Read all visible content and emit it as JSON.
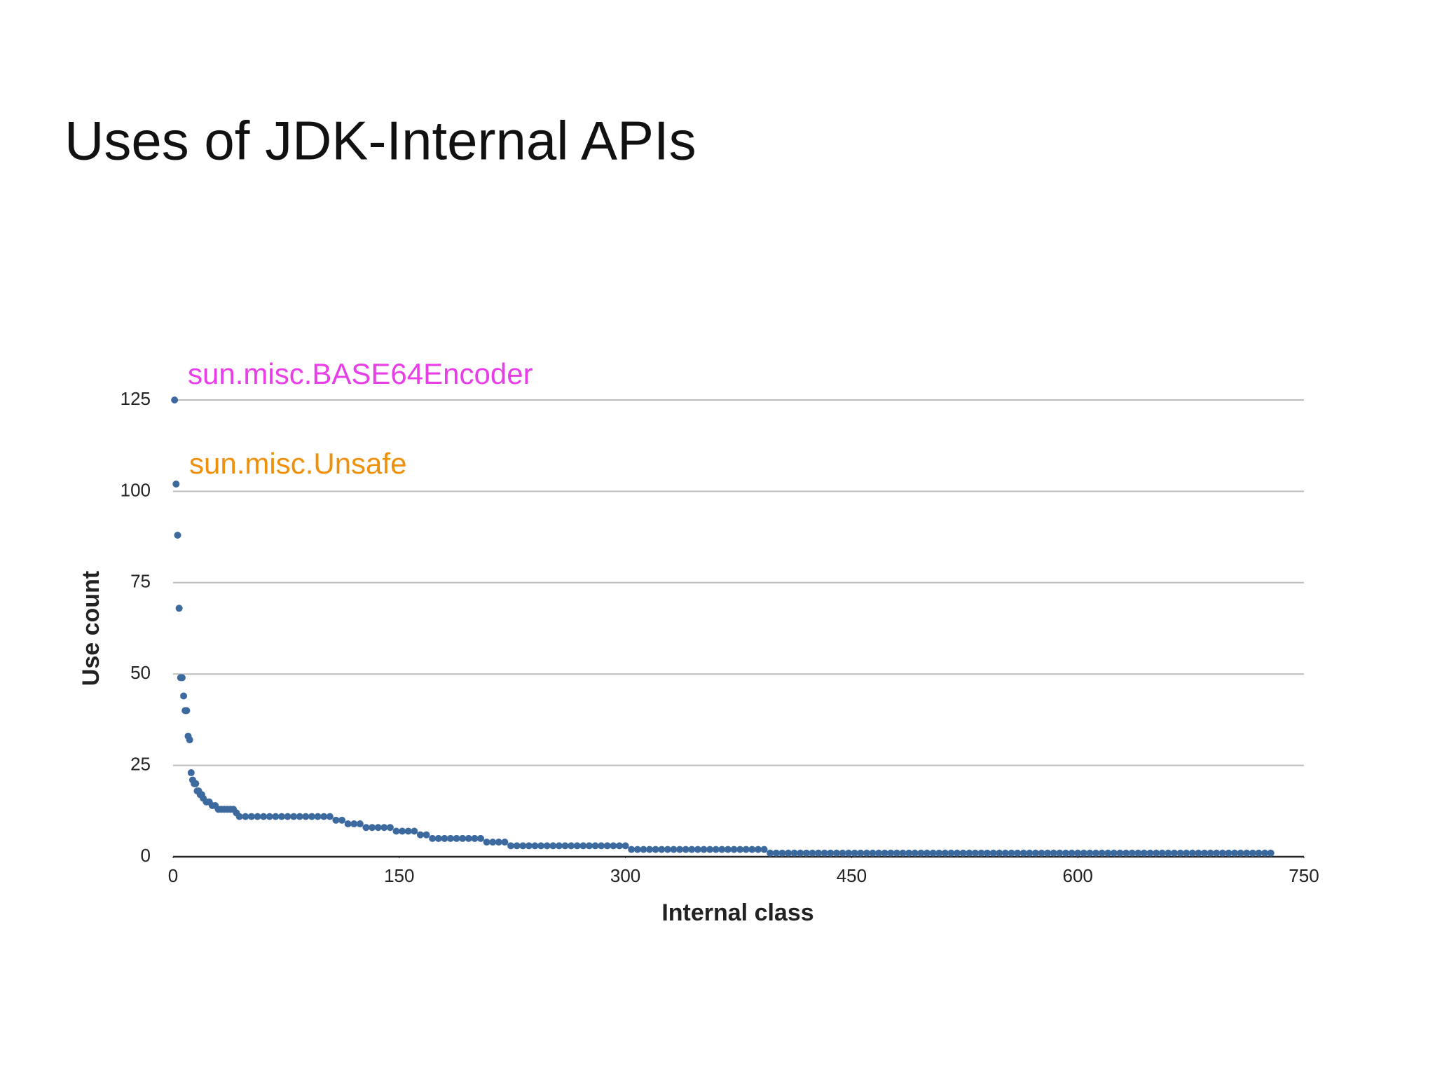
{
  "chart_data": {
    "type": "scatter",
    "title": "Uses of JDK-Internal APIs",
    "xlabel": "Internal class",
    "ylabel": "Use count",
    "annotations": [
      {
        "text": "sun.misc.BASE64Encoder",
        "color": "#e83ee8"
      },
      {
        "text": "sun.misc.Unsafe",
        "color": "#f0900a"
      }
    ],
    "color": "#3d6a9e",
    "grid": true,
    "xlim": [
      0,
      750
    ],
    "xticks": [
      0,
      150,
      300,
      450,
      600,
      750
    ],
    "ylim": [
      0,
      125
    ],
    "yticks": [
      0,
      25,
      50,
      75,
      100,
      125
    ],
    "x": [
      1,
      2,
      3,
      4,
      5,
      6,
      7,
      8,
      9,
      10,
      11,
      12,
      13,
      14,
      15,
      16,
      17,
      18,
      19,
      20,
      22,
      24,
      26,
      28,
      30,
      32,
      34,
      36,
      38,
      40,
      42,
      44,
      48,
      52,
      56,
      60,
      64,
      68,
      72,
      76,
      80,
      84,
      88,
      92,
      96,
      100,
      104,
      108,
      112,
      116,
      120,
      124,
      128,
      132,
      136,
      140,
      144,
      148,
      152,
      156,
      160,
      164,
      168,
      172,
      176,
      180,
      184,
      188,
      192,
      196,
      200,
      204,
      208,
      212,
      216,
      220,
      224,
      228,
      232,
      236,
      240,
      244,
      248,
      252,
      256,
      260,
      264,
      268,
      272,
      276,
      280,
      284,
      288,
      292,
      296,
      300,
      304,
      308,
      312,
      316,
      320,
      324,
      328,
      332,
      336,
      340,
      344,
      348,
      352,
      356,
      360,
      364,
      368,
      372,
      376,
      380,
      384,
      388,
      392,
      396,
      400,
      404,
      408,
      412,
      416,
      420,
      424,
      428,
      432,
      436,
      440,
      444,
      448,
      452,
      456,
      460,
      464,
      468,
      472,
      476,
      480,
      484,
      488,
      492,
      496,
      500,
      504,
      508,
      512,
      516,
      520,
      524,
      528,
      532,
      536,
      540,
      544,
      548,
      552,
      556,
      560,
      564,
      568,
      572,
      576,
      580,
      584,
      588,
      592,
      596,
      600,
      604,
      608,
      612,
      616,
      620,
      624,
      628,
      632,
      636,
      640,
      644,
      648,
      652,
      656,
      660,
      664,
      668,
      672,
      676,
      680,
      684,
      688,
      692,
      696,
      700,
      704,
      708,
      712,
      716,
      720,
      724,
      728
    ],
    "values": [
      125,
      102,
      88,
      68,
      49,
      49,
      44,
      40,
      40,
      33,
      32,
      23,
      21,
      20,
      20,
      18,
      18,
      17,
      17,
      16,
      15,
      15,
      14,
      14,
      13,
      13,
      13,
      13,
      13,
      13,
      12,
      11,
      11,
      11,
      11,
      11,
      11,
      11,
      11,
      11,
      11,
      11,
      11,
      11,
      11,
      11,
      11,
      10,
      10,
      9,
      9,
      9,
      8,
      8,
      8,
      8,
      8,
      7,
      7,
      7,
      7,
      6,
      6,
      5,
      5,
      5,
      5,
      5,
      5,
      5,
      5,
      5,
      4,
      4,
      4,
      4,
      3,
      3,
      3,
      3,
      3,
      3,
      3,
      3,
      3,
      3,
      3,
      3,
      3,
      3,
      3,
      3,
      3,
      3,
      3,
      3,
      2,
      2,
      2,
      2,
      2,
      2,
      2,
      2,
      2,
      2,
      2,
      2,
      2,
      2,
      2,
      2,
      2,
      2,
      2,
      2,
      2,
      2,
      2,
      1,
      1,
      1,
      1,
      1,
      1,
      1,
      1,
      1,
      1,
      1,
      1,
      1,
      1,
      1,
      1,
      1,
      1,
      1,
      1,
      1,
      1,
      1,
      1,
      1,
      1,
      1,
      1,
      1,
      1,
      1,
      1,
      1,
      1,
      1,
      1,
      1,
      1,
      1,
      1,
      1,
      1,
      1,
      1,
      1,
      1,
      1,
      1,
      1,
      1,
      1,
      1,
      1,
      1,
      1,
      1,
      1,
      1,
      1,
      1,
      1,
      1,
      1,
      1,
      1,
      1,
      1,
      1,
      1,
      1,
      1,
      1,
      1,
      1,
      1,
      1,
      1,
      1,
      1,
      1,
      1,
      1,
      1,
      1
    ]
  }
}
